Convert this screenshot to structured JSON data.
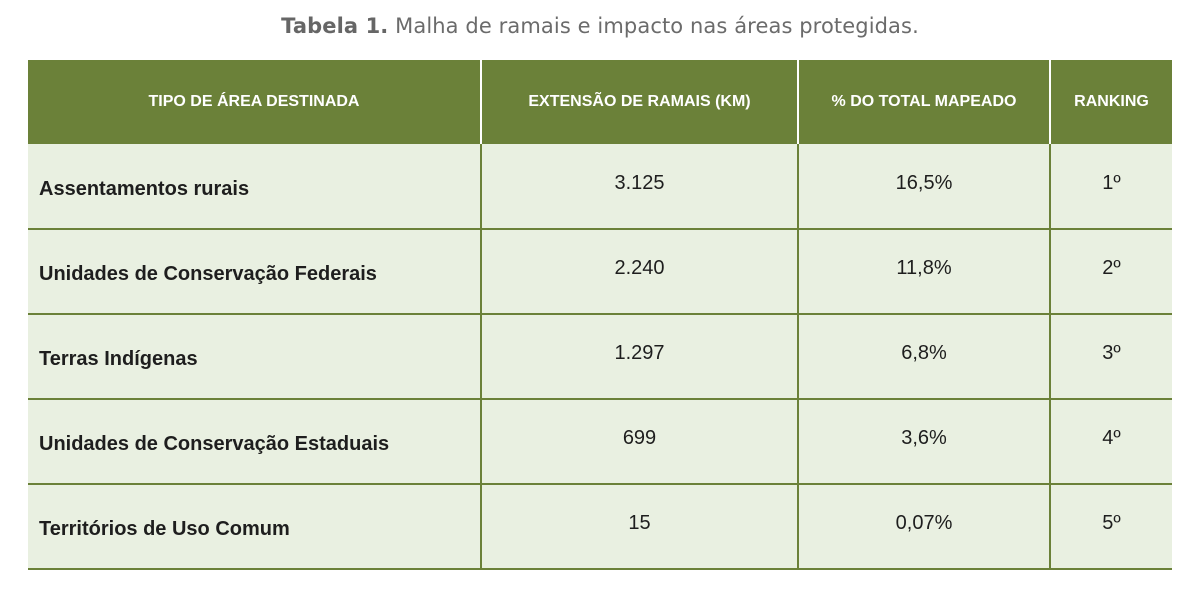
{
  "caption": {
    "label": "Tabela 1.",
    "text": " Malha de ramais e impacto nas áreas protegidas."
  },
  "table": {
    "headers": [
      "TIPO DE ÁREA DESTINADA",
      "EXTENSÃO DE RAMAIS (KM)",
      "% DO TOTAL MAPEADO",
      "RANKING"
    ],
    "rows": [
      {
        "type": "Assentamentos rurais",
        "extension": "3.125",
        "percent": "16,5%",
        "ranking": "1º"
      },
      {
        "type": "Unidades de Conservação Federais",
        "extension": "2.240",
        "percent": "11,8%",
        "ranking": "2º"
      },
      {
        "type": "Terras Indígenas",
        "extension": "1.297",
        "percent": "6,8%",
        "ranking": "3º"
      },
      {
        "type": "Unidades de Conservação Estaduais",
        "extension": "699",
        "percent": "3,6%",
        "ranking": "4º"
      },
      {
        "type": "Territórios de Uso Comum",
        "extension": "15",
        "percent": "0,07%",
        "ranking": "5º"
      }
    ]
  },
  "colors": {
    "header_bg": "#6b8139",
    "row_bg": "#e9f0e1",
    "text": "#1e1e1e"
  }
}
